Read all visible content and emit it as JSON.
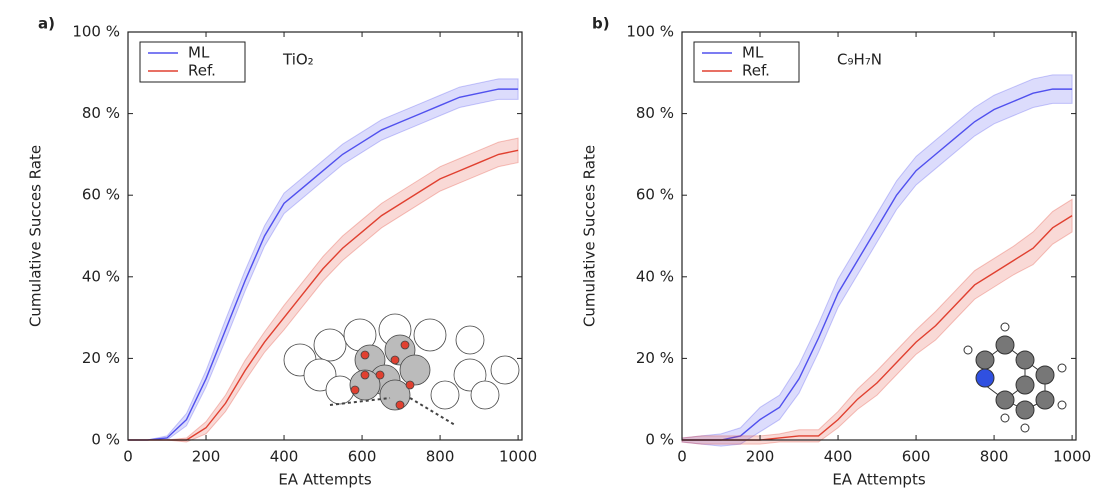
{
  "chart_data": [
    {
      "type": "line",
      "panel": "a)",
      "annotation": "TiO₂",
      "xlabel": "EA Attempts",
      "ylabel": "Cumulative Succes Rate",
      "x": [
        0,
        50,
        100,
        150,
        200,
        250,
        300,
        350,
        400,
        450,
        500,
        550,
        600,
        650,
        700,
        750,
        800,
        850,
        900,
        950,
        1000
      ],
      "series": [
        {
          "name": "ML",
          "color": "#5050ee",
          "values": [
            0,
            0,
            0.5,
            5,
            15,
            27,
            39,
            50,
            58,
            62,
            66,
            70,
            73,
            76,
            78,
            80,
            82,
            84,
            85,
            86,
            86
          ],
          "error": [
            0,
            0,
            0.5,
            1.5,
            2,
            2.5,
            2.5,
            2.5,
            2.5,
            2.5,
            2.5,
            2.5,
            2.5,
            2.5,
            2.5,
            2.5,
            2.5,
            2.5,
            2.5,
            2.5,
            2.5
          ]
        },
        {
          "name": "Ref.",
          "color": "#e04030",
          "values": [
            0,
            0,
            0,
            0,
            3,
            9,
            17,
            24,
            30,
            36,
            42,
            47,
            51,
            55,
            58,
            61,
            64,
            66,
            68,
            70,
            71
          ],
          "error": [
            0,
            0,
            0,
            0.5,
            1.5,
            2,
            2.5,
            2.5,
            3,
            3,
            3,
            3,
            3,
            3,
            3,
            3,
            3,
            3,
            3,
            3,
            3
          ]
        }
      ],
      "xlim": [
        0,
        1010
      ],
      "xticks": [
        0,
        200,
        400,
        600,
        800,
        1000
      ],
      "ylim": [
        0,
        100
      ],
      "yticks": [
        {
          "value": 0,
          "label": "0 %"
        },
        {
          "value": 20,
          "label": "20 %"
        },
        {
          "value": 40,
          "label": "40 %"
        },
        {
          "value": 60,
          "label": "60 %"
        },
        {
          "value": 80,
          "label": "80 %"
        },
        {
          "value": 100,
          "label": "100 %"
        }
      ],
      "legend": "upper left"
    },
    {
      "type": "line",
      "panel": "b)",
      "annotation": "C₉H₇N",
      "xlabel": "EA Attempts",
      "ylabel": "Cumulative Succes Rate",
      "x": [
        0,
        50,
        100,
        150,
        200,
        250,
        300,
        350,
        400,
        450,
        500,
        550,
        600,
        650,
        700,
        750,
        800,
        850,
        900,
        950,
        1000
      ],
      "series": [
        {
          "name": "ML",
          "color": "#5050ee",
          "values": [
            0,
            0,
            0,
            1,
            5,
            8,
            15,
            25,
            36,
            44,
            52,
            60,
            66,
            70,
            74,
            78,
            81,
            83,
            85,
            86,
            86
          ],
          "error": [
            0.5,
            1,
            1.5,
            2,
            3,
            3,
            3.5,
            3.5,
            3.5,
            3.5,
            3.5,
            3.5,
            3.5,
            3.5,
            3.5,
            3.5,
            3.5,
            3.5,
            3.5,
            3.5,
            3.5
          ]
        },
        {
          "name": "Ref.",
          "color": "#e04030",
          "values": [
            0,
            0,
            0,
            0,
            0,
            0.5,
            1,
            1,
            5,
            10,
            14,
            19,
            24,
            28,
            33,
            38,
            41,
            44,
            47,
            52,
            55
          ],
          "error": [
            0.5,
            1,
            1,
            1,
            1,
            1,
            1.5,
            1.5,
            2,
            2.5,
            3,
            3,
            3,
            3.5,
            3.5,
            3.5,
            3.5,
            3.5,
            4,
            4,
            4
          ]
        }
      ],
      "xlim": [
        0,
        1010
      ],
      "xticks": [
        0,
        200,
        400,
        600,
        800,
        1000
      ],
      "ylim": [
        0,
        100
      ],
      "yticks": [
        {
          "value": 0,
          "label": "0 %"
        },
        {
          "value": 20,
          "label": "20 %"
        },
        {
          "value": 40,
          "label": "40 %"
        },
        {
          "value": 60,
          "label": "60 %"
        },
        {
          "value": 80,
          "label": "80 %"
        },
        {
          "value": 100,
          "label": "100 %"
        }
      ],
      "legend": "upper left"
    }
  ]
}
